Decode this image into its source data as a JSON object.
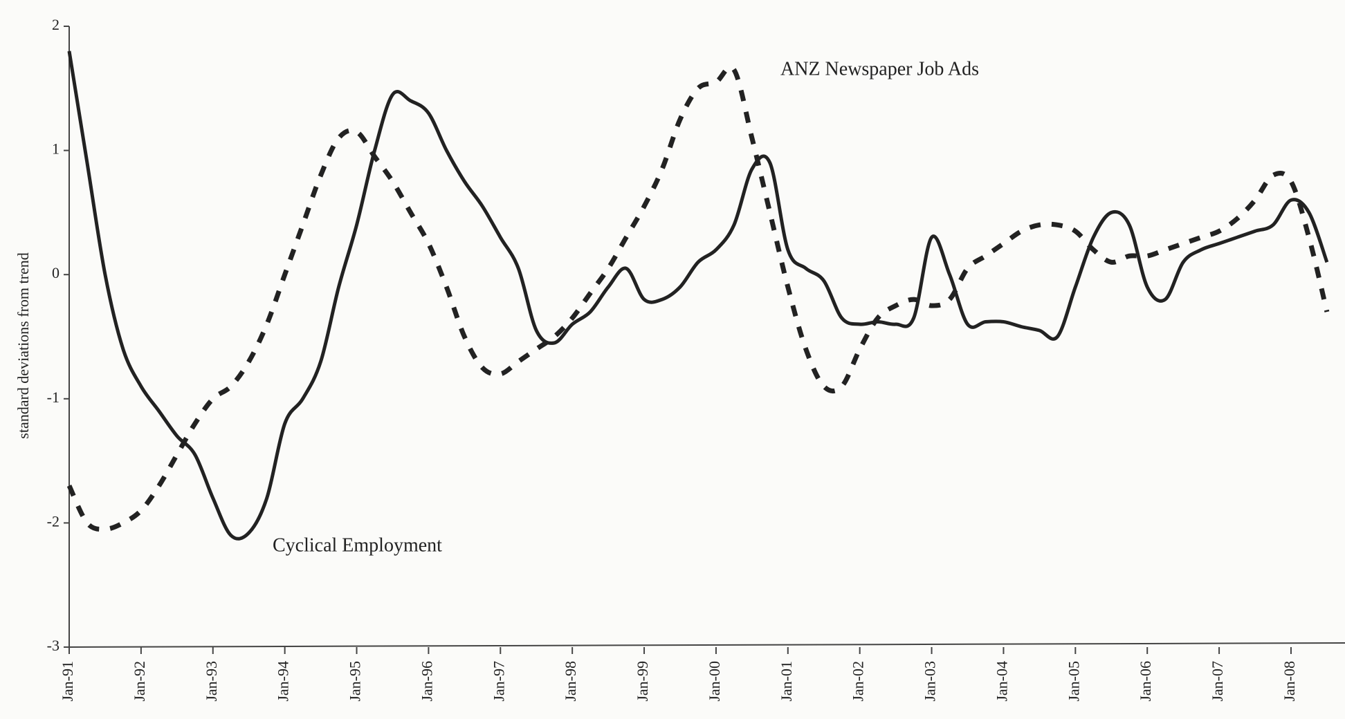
{
  "chart_data": {
    "type": "line",
    "y_label": "standard deviations from trend",
    "annotations": [
      "ANZ Newspaper Job Ads",
      "Cyclical Employment"
    ],
    "categories": [
      "Jan-91",
      null,
      null,
      null,
      "Jan-92",
      null,
      null,
      null,
      "Jan-93",
      null,
      null,
      null,
      "Jan-94",
      null,
      null,
      null,
      "Jan-95",
      null,
      null,
      null,
      "Jan-96",
      null,
      null,
      null,
      "Jan-97",
      null,
      null,
      null,
      "Jan-98",
      null,
      null,
      null,
      "Jan-99",
      null,
      null,
      null,
      "Jan-00",
      null,
      null,
      null,
      "Jan-01",
      null,
      null,
      null,
      "Jan-02",
      null,
      null,
      null,
      "Jan-03",
      null,
      null,
      null,
      "Jan-04",
      null,
      null,
      null,
      "Jan-05",
      null,
      null,
      null,
      "Jan-06",
      null,
      null,
      null,
      "Jan-07",
      null,
      null,
      null,
      "Jan-08",
      null,
      null
    ],
    "series": [
      {
        "name": "Cyclical Employment",
        "color": "#222222",
        "dashed": false,
        "values": [
          1.8,
          0.9,
          0.0,
          -0.6,
          -0.9,
          -1.1,
          -1.3,
          -1.45,
          -1.8,
          -2.1,
          -2.08,
          -1.8,
          -1.2,
          -1.0,
          -0.7,
          -0.1,
          0.4,
          1.0,
          1.45,
          1.4,
          1.3,
          1.0,
          0.75,
          0.55,
          0.3,
          0.05,
          -0.45,
          -0.55,
          -0.4,
          -0.3,
          -0.1,
          0.05,
          -0.2,
          -0.2,
          -0.1,
          0.1,
          0.2,
          0.4,
          0.85,
          0.9,
          0.2,
          0.05,
          -0.05,
          -0.35,
          -0.4,
          -0.38,
          -0.4,
          -0.35,
          0.3,
          0.0,
          -0.4,
          -0.38,
          -0.38,
          -0.42,
          -0.45,
          -0.5,
          -0.1,
          0.3,
          0.5,
          0.4,
          -0.1,
          -0.2,
          0.1,
          0.2,
          0.25,
          0.3,
          0.35,
          0.4,
          0.6,
          0.5,
          0.1
        ]
      },
      {
        "name": "ANZ Newspaper Job Ads",
        "color": "#222222",
        "dashed": true,
        "values": [
          -1.7,
          -2.0,
          -2.05,
          -2.0,
          -1.9,
          -1.7,
          -1.45,
          -1.2,
          -1.0,
          -0.9,
          -0.7,
          -0.4,
          0.0,
          0.4,
          0.8,
          1.1,
          1.15,
          0.95,
          0.75,
          0.5,
          0.25,
          -0.1,
          -0.5,
          -0.75,
          -0.8,
          -0.7,
          -0.6,
          -0.5,
          -0.35,
          -0.15,
          0.05,
          0.3,
          0.55,
          0.85,
          1.25,
          1.5,
          1.55,
          1.65,
          1.1,
          0.5,
          -0.1,
          -0.6,
          -0.9,
          -0.9,
          -0.6,
          -0.35,
          -0.25,
          -0.2,
          -0.25,
          -0.2,
          0.05,
          0.15,
          0.25,
          0.35,
          0.4,
          0.4,
          0.35,
          0.2,
          0.1,
          0.15,
          0.15,
          0.2,
          0.25,
          0.3,
          0.35,
          0.45,
          0.6,
          0.8,
          0.75,
          0.3,
          -0.3
        ]
      }
    ],
    "ylim": [
      -3,
      2
    ],
    "yticks": [
      -3,
      -2,
      -1,
      0,
      1,
      2
    ],
    "grid": false
  }
}
